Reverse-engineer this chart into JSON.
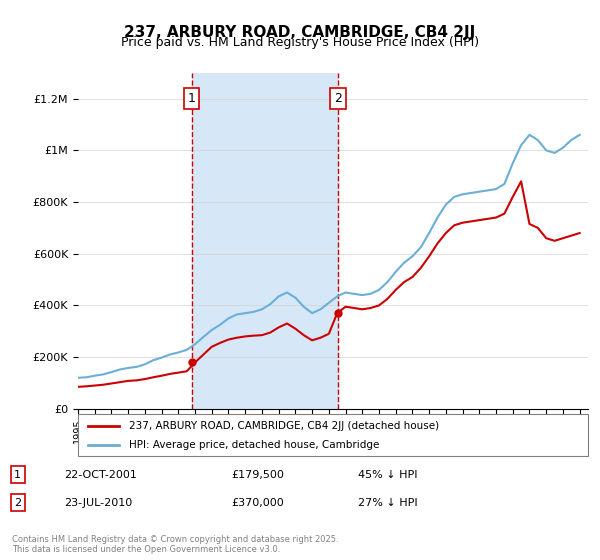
{
  "title": "237, ARBURY ROAD, CAMBRIDGE, CB4 2JJ",
  "subtitle": "Price paid vs. HM Land Registry's House Price Index (HPI)",
  "ylabel_ticks": [
    "£0",
    "£200K",
    "£400K",
    "£600K",
    "£800K",
    "£1M",
    "£1.2M"
  ],
  "ylim": [
    0,
    1300000
  ],
  "yticks": [
    0,
    200000,
    400000,
    600000,
    800000,
    1000000,
    1200000
  ],
  "sale1_date": "22-OCT-2001",
  "sale1_price": 179500,
  "sale1_pct": "45% ↓ HPI",
  "sale2_date": "23-JUL-2010",
  "sale2_price": 370000,
  "sale2_pct": "27% ↓ HPI",
  "sale1_x": 2001.8,
  "sale2_x": 2010.55,
  "hpi_color": "#6baed6",
  "price_color": "#cc0000",
  "vline_color": "#cc0000",
  "shading_color": "#d6e8f7",
  "background_color": "#f0f0f0",
  "legend_label_price": "237, ARBURY ROAD, CAMBRIDGE, CB4 2JJ (detached house)",
  "legend_label_hpi": "HPI: Average price, detached house, Cambridge",
  "footer": "Contains HM Land Registry data © Crown copyright and database right 2025.\nThis data is licensed under the Open Government Licence v3.0.",
  "hpi_data": {
    "years": [
      1995,
      1995.5,
      1996,
      1996.5,
      1997,
      1997.5,
      1998,
      1998.5,
      1999,
      1999.5,
      2000,
      2000.5,
      2001,
      2001.5,
      2002,
      2002.5,
      2003,
      2003.5,
      2004,
      2004.5,
      2005,
      2005.5,
      2006,
      2006.5,
      2007,
      2007.5,
      2008,
      2008.5,
      2009,
      2009.5,
      2010,
      2010.5,
      2011,
      2011.5,
      2012,
      2012.5,
      2013,
      2013.5,
      2014,
      2014.5,
      2015,
      2015.5,
      2016,
      2016.5,
      2017,
      2017.5,
      2018,
      2018.5,
      2019,
      2019.5,
      2020,
      2020.5,
      2021,
      2021.5,
      2022,
      2022.5,
      2023,
      2023.5,
      2024,
      2024.5,
      2025
    ],
    "values": [
      120000,
      122000,
      128000,
      133000,
      142000,
      152000,
      158000,
      162000,
      172000,
      188000,
      198000,
      210000,
      218000,
      228000,
      250000,
      278000,
      305000,
      325000,
      350000,
      365000,
      370000,
      375000,
      385000,
      405000,
      435000,
      450000,
      430000,
      395000,
      370000,
      385000,
      410000,
      435000,
      450000,
      445000,
      440000,
      445000,
      460000,
      490000,
      530000,
      565000,
      590000,
      625000,
      680000,
      740000,
      790000,
      820000,
      830000,
      835000,
      840000,
      845000,
      850000,
      870000,
      950000,
      1020000,
      1060000,
      1040000,
      1000000,
      990000,
      1010000,
      1040000,
      1060000
    ]
  },
  "price_data": {
    "years": [
      1995,
      1995.5,
      1996,
      1996.5,
      1997,
      1997.5,
      1998,
      1998.5,
      1999,
      1999.5,
      2000,
      2000.5,
      2001,
      2001.5,
      2002,
      2002.5,
      2003,
      2003.5,
      2004,
      2004.5,
      2005,
      2005.5,
      2006,
      2006.5,
      2007,
      2007.5,
      2008,
      2008.5,
      2009,
      2009.5,
      2010,
      2010.5,
      2011,
      2011.5,
      2012,
      2012.5,
      2013,
      2013.5,
      2014,
      2014.5,
      2015,
      2015.5,
      2016,
      2016.5,
      2017,
      2017.5,
      2018,
      2018.5,
      2019,
      2019.5,
      2020,
      2020.5,
      2021,
      2021.5,
      2022,
      2022.5,
      2023,
      2023.5,
      2024,
      2024.5,
      2025
    ],
    "values": [
      85000,
      87000,
      90000,
      93000,
      98000,
      103000,
      108000,
      110000,
      115000,
      122000,
      128000,
      135000,
      140000,
      145000,
      179500,
      210000,
      240000,
      255000,
      268000,
      275000,
      280000,
      283000,
      285000,
      295000,
      315000,
      330000,
      310000,
      285000,
      265000,
      275000,
      290000,
      370000,
      395000,
      390000,
      385000,
      390000,
      400000,
      425000,
      460000,
      490000,
      510000,
      545000,
      590000,
      640000,
      680000,
      710000,
      720000,
      725000,
      730000,
      735000,
      740000,
      755000,
      820000,
      880000,
      715000,
      700000,
      660000,
      650000,
      660000,
      670000,
      680000
    ]
  }
}
